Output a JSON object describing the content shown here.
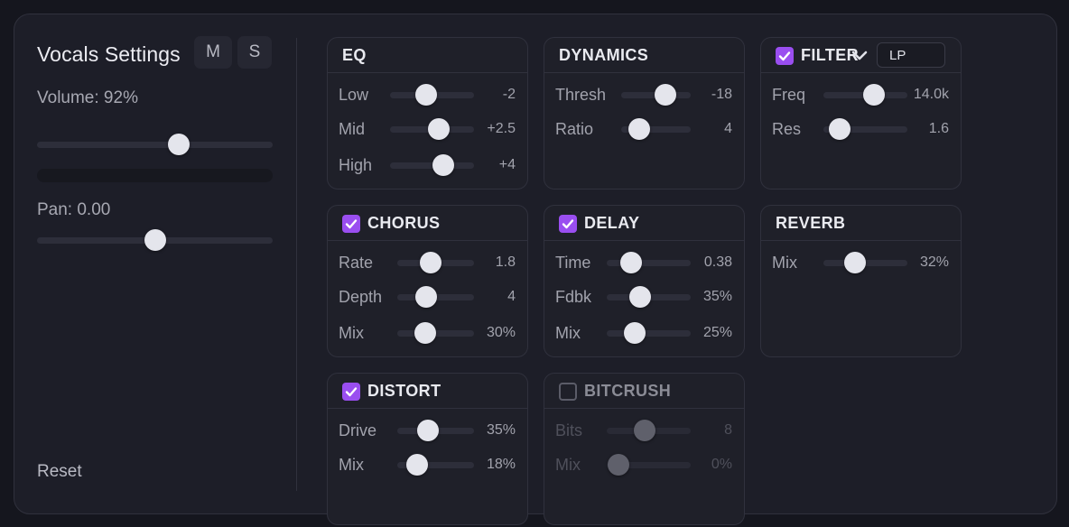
{
  "track": {
    "title": "Vocals Settings",
    "mute_label": "M",
    "solo_label": "S",
    "volume_label": "Volume: 92%",
    "volume_value": 0.6,
    "pan_label": "Pan: 0.00",
    "pan_value": 0.5,
    "reset_label": "Reset"
  },
  "filter_type": "LP",
  "colors": {
    "accent": "#9a4ef0",
    "panel": "#1d1e28",
    "thumb": "#e4e5ec"
  },
  "modules": [
    {
      "id": "eq",
      "title": "EQ",
      "checkbox": null,
      "params": [
        {
          "label": "Low",
          "value": "-2",
          "pos": 0.43
        },
        {
          "label": "Mid",
          "value": "+2.5",
          "pos": 0.58
        },
        {
          "label": "High",
          "value": "+4",
          "pos": 0.63
        }
      ]
    },
    {
      "id": "dynamics",
      "title": "DYNAMICS",
      "checkbox": null,
      "params": [
        {
          "label": "Thresh",
          "value": "-18",
          "pos": 0.64
        },
        {
          "label": "Ratio",
          "value": "4",
          "pos": 0.26
        }
      ]
    },
    {
      "id": "filter",
      "title": "FILTER",
      "checkbox": true,
      "params": [
        {
          "label": "Freq",
          "value": "14.0k",
          "pos": 0.6
        },
        {
          "label": "Res",
          "value": "1.6",
          "pos": 0.19
        }
      ]
    },
    {
      "id": "chorus",
      "title": "CHORUS",
      "checkbox": true,
      "params": [
        {
          "label": "Rate",
          "value": "1.8",
          "pos": 0.43
        },
        {
          "label": "Depth",
          "value": "4",
          "pos": 0.38
        },
        {
          "label": "Mix",
          "value": "30%",
          "pos": 0.36
        }
      ]
    },
    {
      "id": "delay",
      "title": "DELAY",
      "checkbox": true,
      "params": [
        {
          "label": "Time",
          "value": "0.38",
          "pos": 0.29
        },
        {
          "label": "Fdbk",
          "value": "35%",
          "pos": 0.4
        },
        {
          "label": "Mix",
          "value": "25%",
          "pos": 0.33
        }
      ]
    },
    {
      "id": "reverb",
      "title": "REVERB",
      "checkbox": null,
      "params": [
        {
          "label": "Mix",
          "value": "32%",
          "pos": 0.38
        }
      ]
    },
    {
      "id": "distort",
      "title": "DISTORT",
      "checkbox": true,
      "params": [
        {
          "label": "Drive",
          "value": "35%",
          "pos": 0.4
        },
        {
          "label": "Mix",
          "value": "18%",
          "pos": 0.26
        }
      ]
    },
    {
      "id": "bitcrush",
      "title": "BITCRUSH",
      "checkbox": false,
      "params": [
        {
          "label": "Bits",
          "value": "8",
          "pos": 0.45
        },
        {
          "label": "Mix",
          "value": "0%",
          "pos": 0.14
        }
      ]
    }
  ]
}
